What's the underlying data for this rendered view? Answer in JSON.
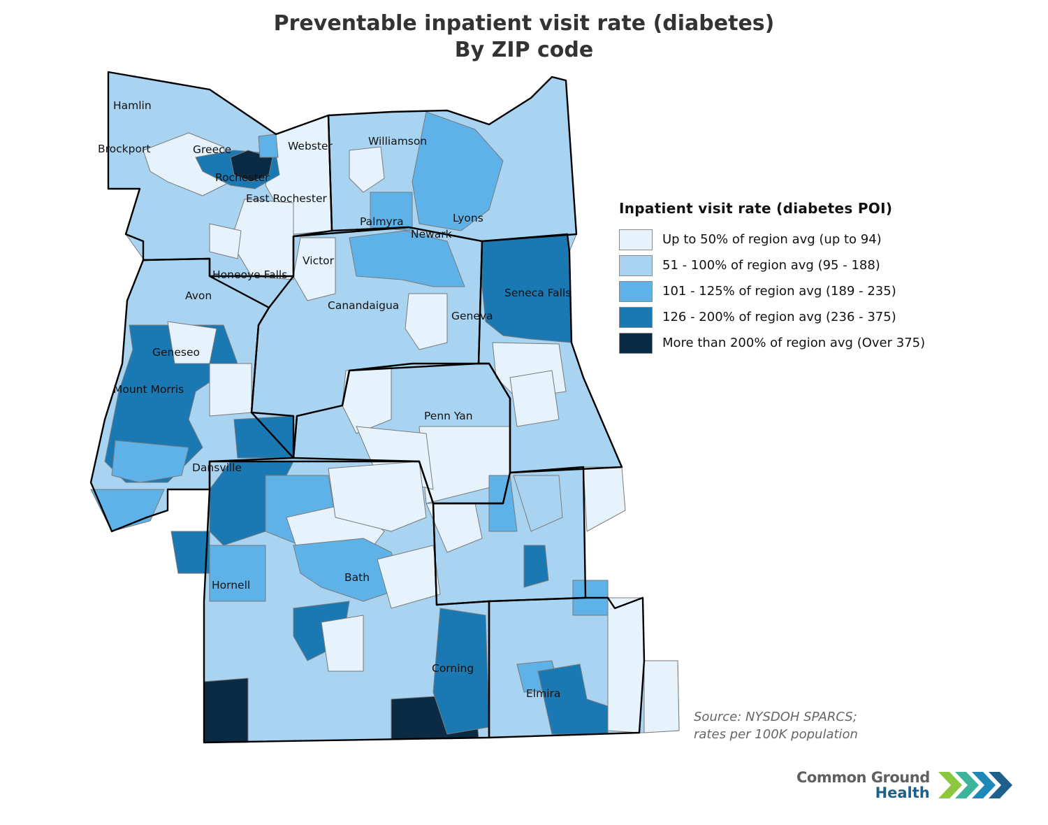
{
  "title": {
    "line1": "Preventable inpatient visit rate (diabetes)",
    "line2": "By ZIP code"
  },
  "legend": {
    "title": "Inpatient visit rate (diabetes POI)",
    "classes": [
      {
        "label": "Up to 50% of region avg (up to 94)",
        "color": "#e6f3fc",
        "min": 0,
        "max": 94
      },
      {
        "label": "51 - 100% of region avg (95 - 188)",
        "color": "#a8d4f2",
        "min": 95,
        "max": 188
      },
      {
        "label": "101 - 125% of region avg (189 - 235)",
        "color": "#5eb2e7",
        "min": 189,
        "max": 235
      },
      {
        "label": "126 - 200% of region avg (236 - 375)",
        "color": "#1a78b2",
        "min": 236,
        "max": 375
      },
      {
        "label": "More than 200% of region avg (Over 375)",
        "color": "#0b2b45",
        "min": 376,
        "max": null
      }
    ]
  },
  "places": [
    {
      "name": "Hamlin",
      "class": 1
    },
    {
      "name": "Brockport",
      "class": 1
    },
    {
      "name": "Greece",
      "class": 1
    },
    {
      "name": "Webster",
      "class": 0
    },
    {
      "name": "Williamson",
      "class": 1
    },
    {
      "name": "Rochester",
      "class": 4
    },
    {
      "name": "East Rochester",
      "class": 0
    },
    {
      "name": "Palmyra",
      "class": 2
    },
    {
      "name": "Lyons",
      "class": 2
    },
    {
      "name": "Newark",
      "class": 2
    },
    {
      "name": "Victor",
      "class": 0
    },
    {
      "name": "Honeoye Falls",
      "class": 0
    },
    {
      "name": "Avon",
      "class": 1
    },
    {
      "name": "Canandaigua",
      "class": 1
    },
    {
      "name": "Seneca Falls",
      "class": 3
    },
    {
      "name": "Geneva",
      "class": 1
    },
    {
      "name": "Geneseo",
      "class": 0
    },
    {
      "name": "Mount Morris",
      "class": 3
    },
    {
      "name": "Penn Yan",
      "class": 1
    },
    {
      "name": "Dansville",
      "class": 1
    },
    {
      "name": "Hornell",
      "class": 2
    },
    {
      "name": "Bath",
      "class": 2
    },
    {
      "name": "Corning",
      "class": 3
    },
    {
      "name": "Elmira",
      "class": 3
    }
  ],
  "source": {
    "line1": "Source: NYSDOH SPARCS;",
    "line2": "rates per 100K population"
  },
  "logo": {
    "line1": "Common Ground",
    "line2": "Health",
    "chevron_colors": [
      "#8dc63f",
      "#3cb39a",
      "#1f88b8",
      "#1f5f8b"
    ]
  }
}
